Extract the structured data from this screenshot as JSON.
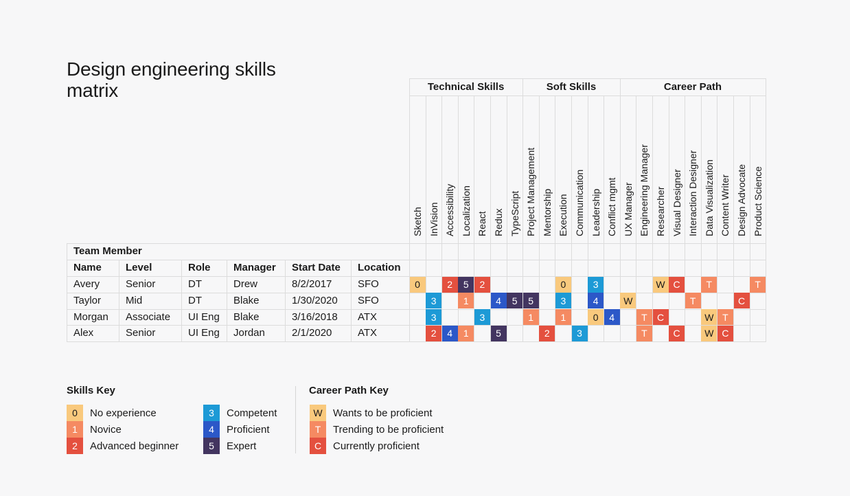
{
  "title": "Design engineering skills matrix",
  "groups": [
    {
      "label": "Technical Skills",
      "span": 7
    },
    {
      "label": "Soft Skills",
      "span": 6
    },
    {
      "label": "Career Path",
      "span": 9
    }
  ],
  "columns": [
    "Sketch",
    "InVision",
    "Accessibility",
    "Localization",
    "React",
    "Redux",
    "TypeScript",
    "Project Management",
    "Mentorship",
    "Execution",
    "Communication",
    "Leadership",
    "Conflict mgmt",
    "UX Manager",
    "Engineering Manager",
    "Researcher",
    "Visual Designer",
    "Interaction Designer",
    "Data Visualization",
    "Content Writer",
    "Design Advocate",
    "Product Science"
  ],
  "team_header": "Team Member",
  "member_headers": [
    "Name",
    "Level",
    "Role",
    "Manager",
    "Start Date",
    "Location"
  ],
  "members": [
    {
      "cells": [
        "Avery",
        "Senior",
        "DT",
        "Drew",
        "8/2/2017",
        "SFO"
      ],
      "ratings": [
        "0",
        "",
        "2",
        "5",
        "2",
        "",
        "",
        "",
        "",
        "0",
        "",
        "3",
        "",
        "",
        "",
        "W",
        "C",
        "",
        "T",
        "",
        "",
        "T"
      ]
    },
    {
      "cells": [
        "Taylor",
        "Mid",
        "DT",
        "Blake",
        "1/30/2020",
        "SFO"
      ],
      "ratings": [
        "",
        "3",
        "",
        "1",
        "",
        "4",
        "5",
        "5",
        "",
        "3",
        "",
        "4",
        "",
        "W",
        "",
        "",
        "",
        "T",
        "",
        "",
        "C",
        ""
      ]
    },
    {
      "cells": [
        "Morgan",
        "Associate",
        "UI Eng",
        "Blake",
        "3/16/2018",
        "ATX"
      ],
      "ratings": [
        "",
        "3",
        "",
        "",
        "3",
        "",
        "",
        "1",
        "",
        "1",
        "",
        "0",
        "4",
        "",
        "T",
        "C",
        "",
        "",
        "W",
        "T",
        "",
        ""
      ]
    },
    {
      "cells": [
        "Alex",
        "Senior",
        "UI Eng",
        "Jordan",
        "2/1/2020",
        "ATX"
      ],
      "ratings": [
        "",
        "2",
        "4",
        "1",
        "",
        "5",
        "",
        "",
        "2",
        "",
        "3",
        "",
        "",
        "",
        "T",
        "",
        "C",
        "",
        "W",
        "C",
        "",
        ""
      ]
    }
  ],
  "rating_colors": {
    "0": {
      "bg": "#f9c97d",
      "fg": "#1a1a1a"
    },
    "1": {
      "bg": "#f58a62",
      "fg": "#ffffff"
    },
    "2": {
      "bg": "#e4503f",
      "fg": "#ffffff"
    },
    "3": {
      "bg": "#1d9ad6",
      "fg": "#ffffff"
    },
    "4": {
      "bg": "#2c58c8",
      "fg": "#ffffff"
    },
    "5": {
      "bg": "#433560",
      "fg": "#ffffff"
    },
    "W": {
      "bg": "#f9c97d",
      "fg": "#1a1a1a"
    },
    "T": {
      "bg": "#f58a62",
      "fg": "#ffffff"
    },
    "C": {
      "bg": "#e4503f",
      "fg": "#ffffff"
    }
  },
  "skills_key": {
    "title": "Skills Key",
    "items": [
      {
        "code": "0",
        "label": "No experience"
      },
      {
        "code": "1",
        "label": "Novice"
      },
      {
        "code": "2",
        "label": "Advanced beginner"
      },
      {
        "code": "3",
        "label": "Competent"
      },
      {
        "code": "4",
        "label": "Proficient"
      },
      {
        "code": "5",
        "label": "Expert"
      }
    ]
  },
  "career_key": {
    "title": "Career Path Key",
    "items": [
      {
        "code": "W",
        "label": "Wants to be proficient"
      },
      {
        "code": "T",
        "label": "Trending to be proficient"
      },
      {
        "code": "C",
        "label": "Currently proficient"
      }
    ]
  }
}
